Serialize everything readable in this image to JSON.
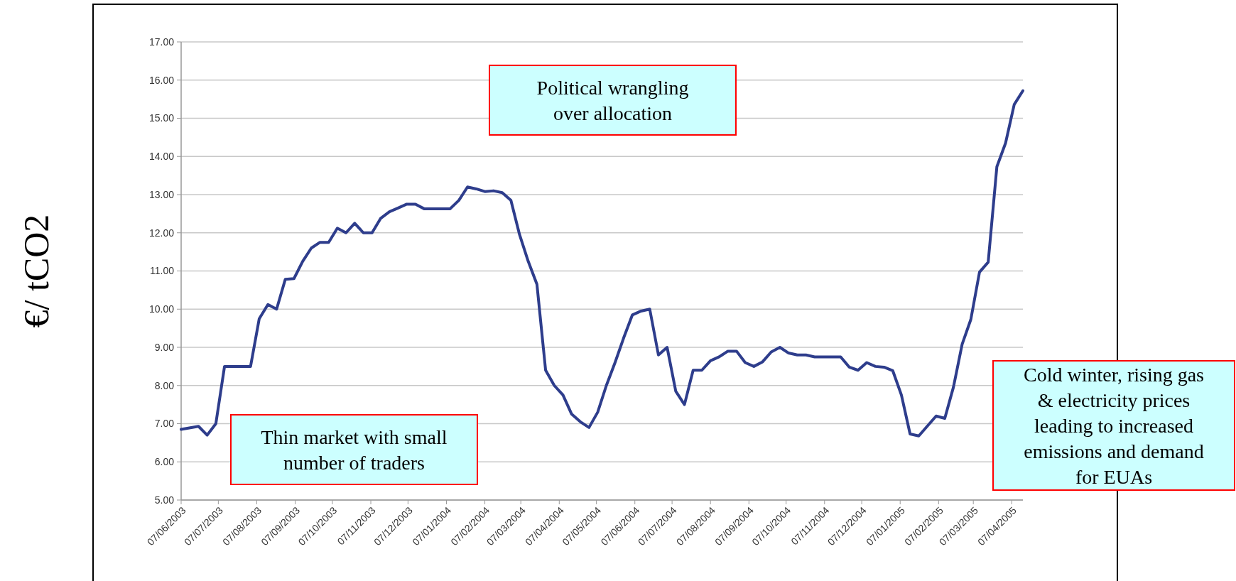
{
  "chart_data": {
    "type": "line",
    "ylabel": "€/ tCO2",
    "annotations": [
      "Thin market with small number of traders",
      "Political wrangling over allocation",
      "Cold winter, rising gas & electricity prices leading to increased emissions and demand for EUAs"
    ],
    "x": [
      "2003-06-07",
      "2003-06-21",
      "2003-06-28",
      "2003-07-05",
      "2003-07-12",
      "2003-08-02",
      "2003-08-09",
      "2003-08-16",
      "2003-08-23",
      "2003-08-30",
      "2003-09-06",
      "2003-09-13",
      "2003-09-20",
      "2003-09-27",
      "2003-10-04",
      "2003-10-11",
      "2003-10-18",
      "2003-10-25",
      "2003-11-01",
      "2003-11-08",
      "2003-11-15",
      "2003-11-22",
      "2003-11-29",
      "2003-12-06",
      "2003-12-13",
      "2003-12-20",
      "2004-01-10",
      "2004-01-17",
      "2004-01-24",
      "2004-01-31",
      "2004-02-07",
      "2004-02-14",
      "2004-02-21",
      "2004-02-28",
      "2004-03-06",
      "2004-03-13",
      "2004-03-20",
      "2004-03-27",
      "2004-04-03",
      "2004-04-10",
      "2004-04-17",
      "2004-04-24",
      "2004-05-01",
      "2004-05-08",
      "2004-05-15",
      "2004-05-22",
      "2004-05-29",
      "2004-06-05",
      "2004-06-12",
      "2004-06-19",
      "2004-06-26",
      "2004-07-03",
      "2004-07-10",
      "2004-07-17",
      "2004-07-24",
      "2004-07-31",
      "2004-08-07",
      "2004-08-14",
      "2004-08-21",
      "2004-08-28",
      "2004-09-04",
      "2004-09-11",
      "2004-09-18",
      "2004-09-25",
      "2004-10-02",
      "2004-10-09",
      "2004-10-16",
      "2004-10-23",
      "2004-10-30",
      "2004-11-20",
      "2004-11-27",
      "2004-12-04",
      "2004-12-11",
      "2004-12-18",
      "2004-12-25",
      "2005-01-01",
      "2005-01-08",
      "2005-01-15",
      "2005-01-22",
      "2005-01-29",
      "2005-02-05",
      "2005-02-12",
      "2005-02-19",
      "2005-02-26",
      "2005-03-05",
      "2005-03-12",
      "2005-03-19",
      "2005-03-26",
      "2005-04-02",
      "2005-04-09",
      "2005-04-16"
    ],
    "series": [
      {
        "color": "#2e3d8c",
        "values": [
          6.85,
          6.93,
          6.7,
          7.0,
          8.5,
          8.5,
          9.75,
          10.12,
          10.0,
          10.78,
          10.8,
          11.25,
          11.6,
          11.75,
          11.75,
          12.12,
          12.0,
          12.25,
          12.0,
          12.0,
          12.38,
          12.55,
          12.65,
          12.75,
          12.75,
          12.63,
          12.63,
          12.85,
          13.2,
          13.15,
          13.08,
          13.1,
          13.05,
          12.85,
          11.95,
          11.25,
          10.65,
          8.4,
          8.0,
          7.75,
          7.25,
          7.05,
          6.9,
          7.3,
          8.0,
          8.6,
          9.25,
          9.85,
          9.95,
          10.0,
          8.8,
          9.0,
          7.85,
          7.5,
          8.4,
          8.4,
          8.65,
          8.75,
          8.9,
          8.9,
          8.6,
          8.5,
          8.62,
          8.88,
          9.0,
          8.85,
          8.8,
          8.8,
          8.75,
          8.75,
          8.48,
          8.4,
          8.6,
          8.5,
          8.48,
          8.39,
          7.75,
          6.73,
          6.68,
          6.94,
          7.2,
          7.14,
          7.96,
          9.08,
          9.73,
          10.97,
          11.23,
          13.73,
          14.35,
          15.36,
          15.72
        ]
      }
    ],
    "xlim": [
      "2003-06-07",
      "2005-04-16"
    ],
    "xticks": [
      {
        "value": "2003-06-07",
        "label": "07/06/2003"
      },
      {
        "value": "2003-07-07",
        "label": "07/07/2003"
      },
      {
        "value": "2003-08-07",
        "label": "07/08/2003"
      },
      {
        "value": "2003-09-07",
        "label": "07/09/2003"
      },
      {
        "value": "2003-10-07",
        "label": "07/10/2003"
      },
      {
        "value": "2003-11-07",
        "label": "07/11/2003"
      },
      {
        "value": "2003-12-07",
        "label": "07/12/2003"
      },
      {
        "value": "2004-01-07",
        "label": "07/01/2004"
      },
      {
        "value": "2004-02-07",
        "label": "07/02/2004"
      },
      {
        "value": "2004-03-07",
        "label": "07/03/2004"
      },
      {
        "value": "2004-04-07",
        "label": "07/04/2004"
      },
      {
        "value": "2004-05-07",
        "label": "07/05/2004"
      },
      {
        "value": "2004-06-07",
        "label": "07/06/2004"
      },
      {
        "value": "2004-07-07",
        "label": "07/07/2004"
      },
      {
        "value": "2004-08-07",
        "label": "07/08/2004"
      },
      {
        "value": "2004-09-07",
        "label": "07/09/2004"
      },
      {
        "value": "2004-10-07",
        "label": "07/10/2004"
      },
      {
        "value": "2004-11-07",
        "label": "07/11/2004"
      },
      {
        "value": "2004-12-07",
        "label": "07/12/2004"
      },
      {
        "value": "2005-01-07",
        "label": "07/01/2005"
      },
      {
        "value": "2005-02-07",
        "label": "07/02/2005"
      },
      {
        "value": "2005-03-07",
        "label": "07/03/2005"
      },
      {
        "value": "2005-04-07",
        "label": "07/04/2005"
      }
    ],
    "ylim": [
      5,
      17
    ],
    "yticks": [
      {
        "value": 5,
        "label": "5.00"
      },
      {
        "value": 6,
        "label": "6.00"
      },
      {
        "value": 7,
        "label": "7.00"
      },
      {
        "value": 8,
        "label": "8.00"
      },
      {
        "value": 9,
        "label": "9.00"
      },
      {
        "value": 10,
        "label": "10.00"
      },
      {
        "value": 11,
        "label": "11.00"
      },
      {
        "value": 12,
        "label": "12.00"
      },
      {
        "value": 13,
        "label": "13.00"
      },
      {
        "value": 14,
        "label": "14.00"
      },
      {
        "value": 15,
        "label": "15.00"
      },
      {
        "value": 16,
        "label": "16.00"
      },
      {
        "value": 17,
        "label": "17.00"
      }
    ],
    "grid": "y",
    "marker": "none",
    "line_style": "solid"
  }
}
